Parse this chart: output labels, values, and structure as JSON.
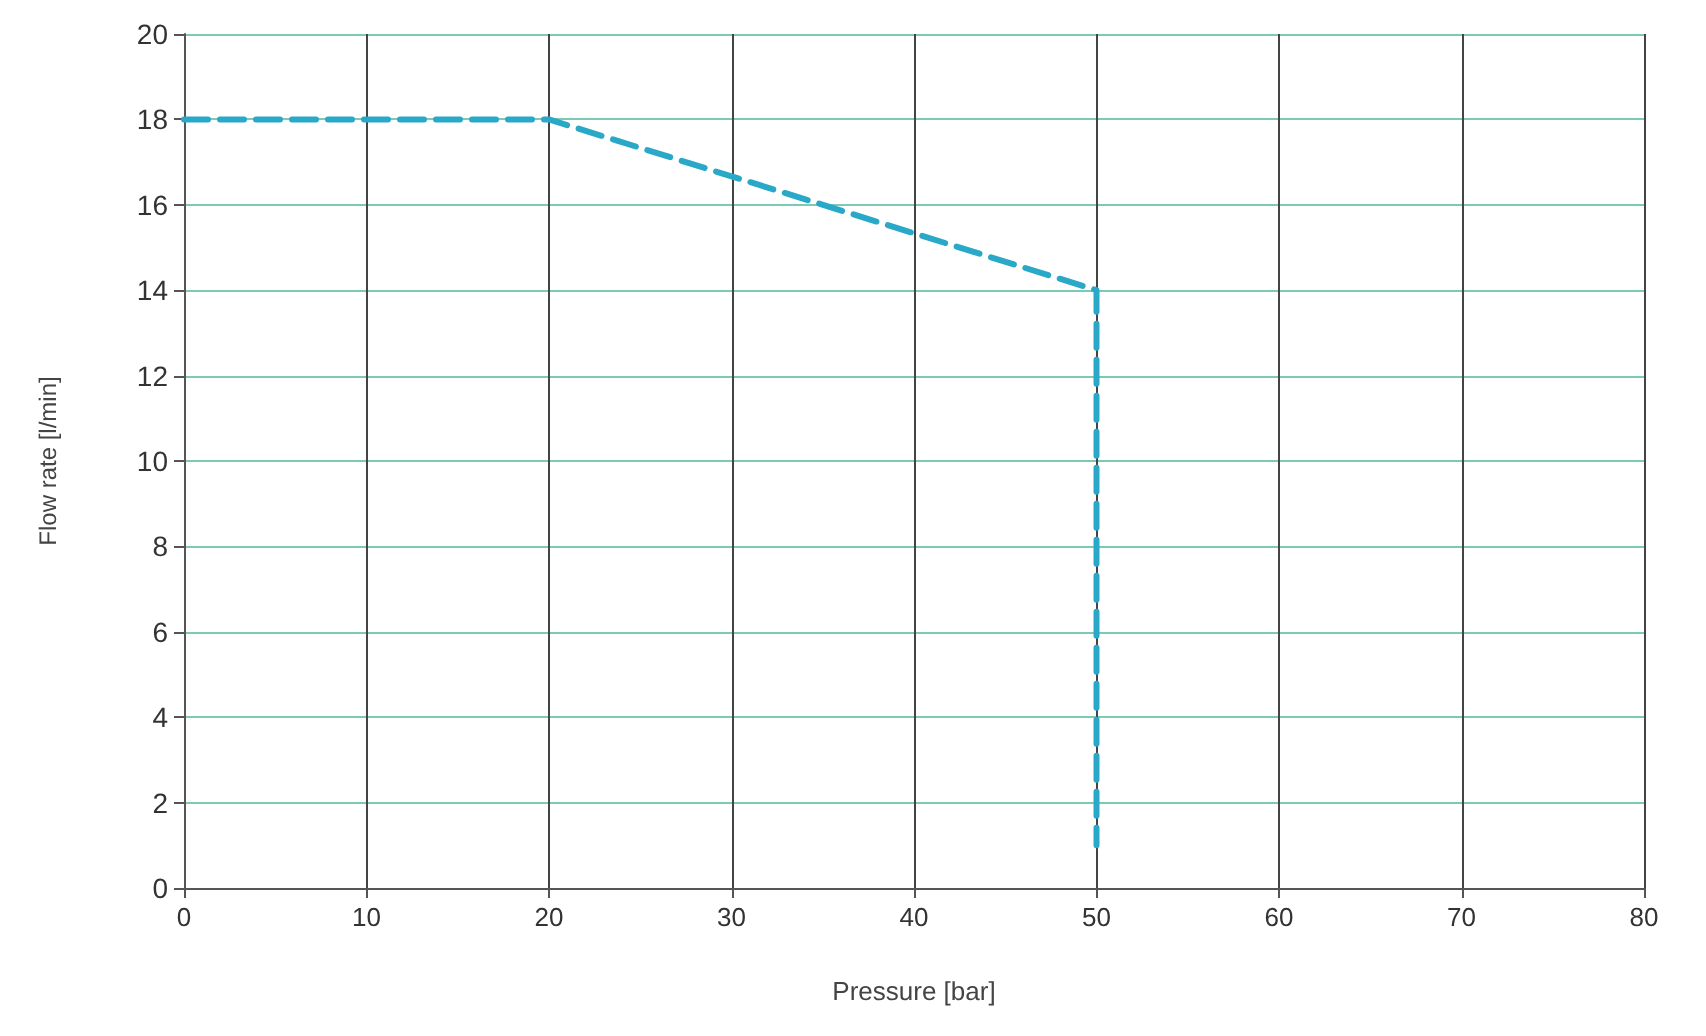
{
  "chart_data": {
    "type": "line",
    "xlabel": "Pressure [bar]",
    "ylabel": "Flow rate [l/min]",
    "x": [
      0,
      20,
      50,
      50
    ],
    "series": [
      {
        "color": "#2aa8c8",
        "values": [
          18,
          18,
          14,
          1
        ]
      }
    ],
    "xlim": [
      0,
      80
    ],
    "xticks": [
      0,
      10,
      20,
      30,
      40,
      50,
      60,
      70,
      80
    ],
    "ylim": [
      0,
      20
    ],
    "yticks": [
      0,
      2,
      4,
      6,
      8,
      10,
      12,
      14,
      16,
      18,
      20
    ],
    "grid": true,
    "marker": "none",
    "line_style": "dashed"
  }
}
